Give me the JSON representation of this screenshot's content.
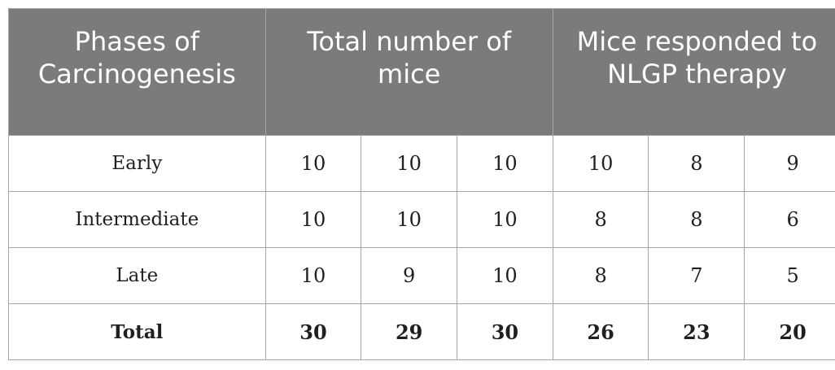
{
  "table": {
    "headers": {
      "phases": "Phases of Carcinogenesis",
      "total": "Total number of mice",
      "responded": "Mice responded to NLGP therapy"
    },
    "rows": [
      {
        "label": "Early",
        "values": [
          "10",
          "10",
          "10",
          "10",
          "8",
          "9"
        ]
      },
      {
        "label": "Intermediate",
        "values": [
          "10",
          "10",
          "10",
          "8",
          "8",
          "6"
        ]
      },
      {
        "label": "Late",
        "values": [
          "10",
          "9",
          "10",
          "8",
          "7",
          "5"
        ]
      }
    ],
    "total": {
      "label": "Total",
      "values": [
        "30",
        "29",
        "30",
        "26",
        "23",
        "20"
      ]
    }
  }
}
